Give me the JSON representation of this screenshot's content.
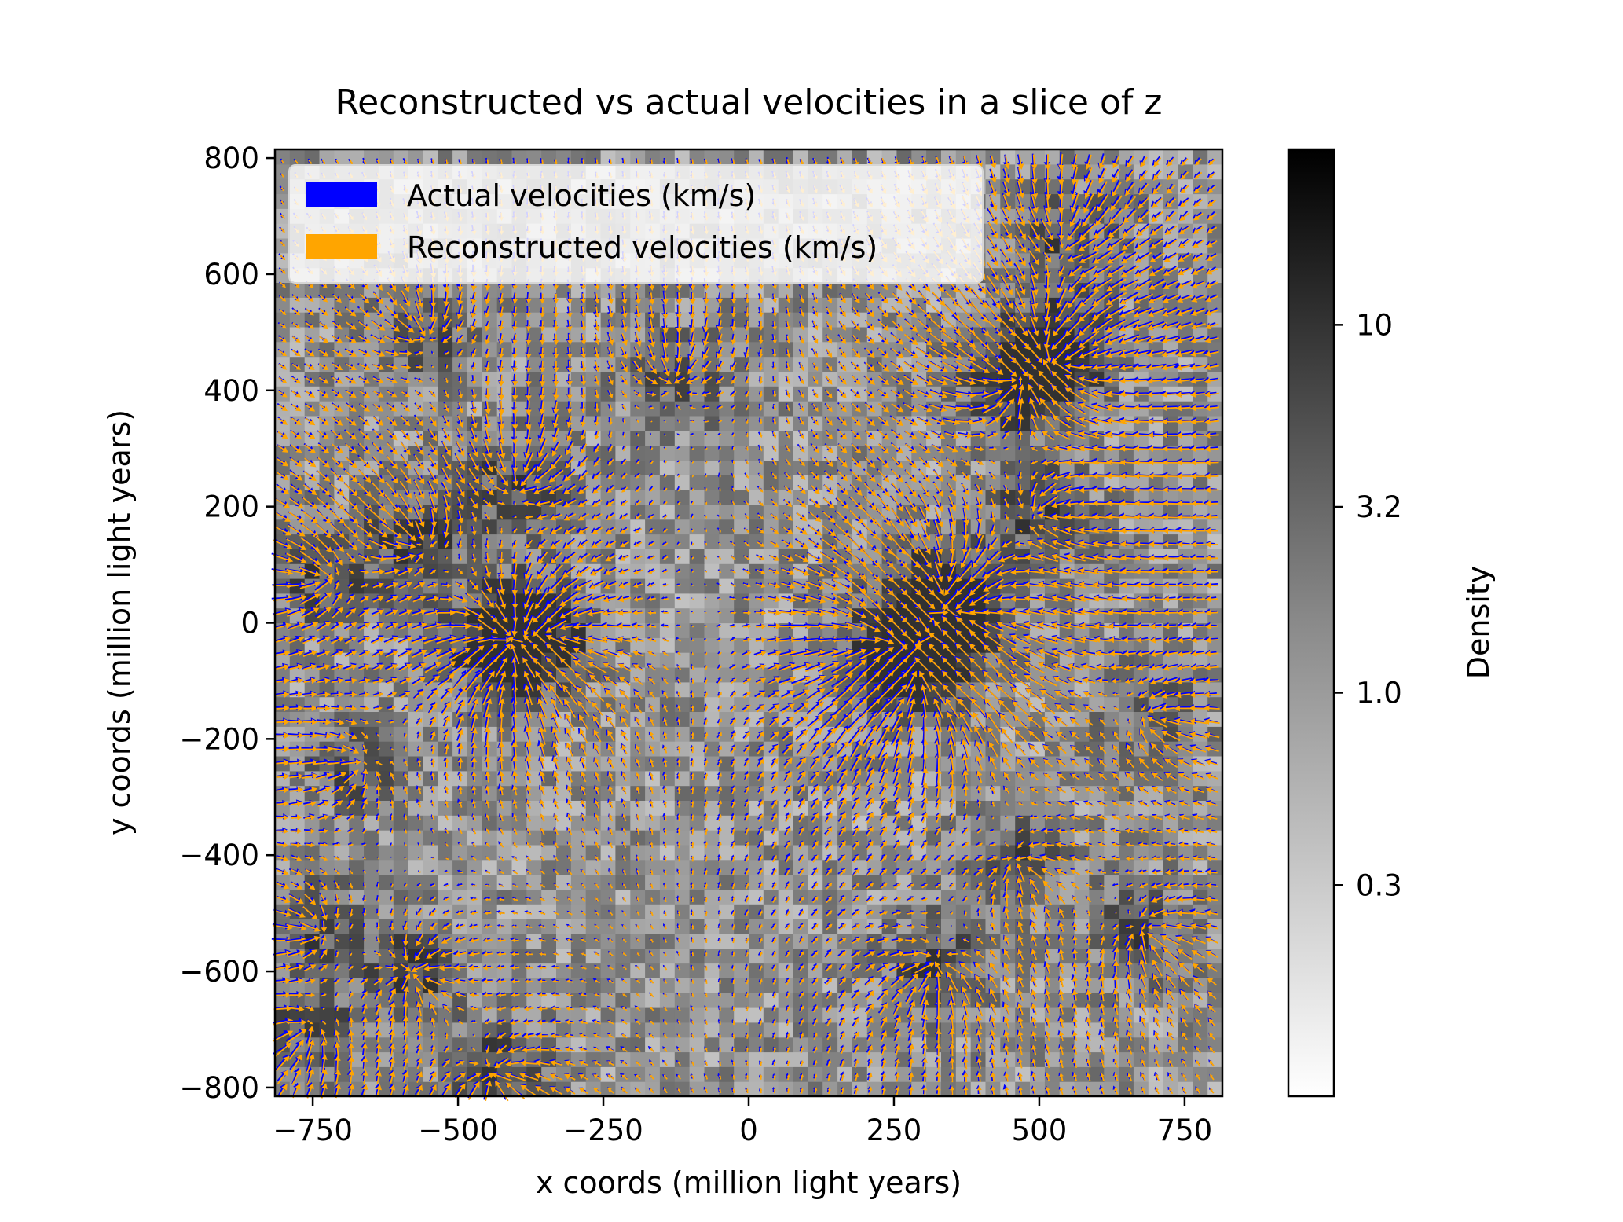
{
  "chart_data": {
    "type": "heatmap",
    "title": "Reconstructed vs actual velocities in a slice of z",
    "xlabel": "x coords (million light years)",
    "ylabel": "y coords (million light years)",
    "xlim": [
      -815,
      815
    ],
    "ylim": [
      -815,
      815
    ],
    "xticks": [
      -750,
      -500,
      -250,
      0,
      250,
      500,
      750
    ],
    "yticks": [
      800,
      600,
      400,
      200,
      0,
      -200,
      -400,
      -600,
      -800
    ],
    "xtick_labels": [
      "−750",
      "−500",
      "−250",
      "0",
      "250",
      "500",
      "750"
    ],
    "ytick_labels": [
      "800",
      "600",
      "400",
      "200",
      "0",
      "−200",
      "−400",
      "−600",
      "−800"
    ],
    "grid": false,
    "legend": {
      "position": "upper-left",
      "entries": [
        {
          "label": "Actual velocities (km/s)",
          "color": "#0000ff"
        },
        {
          "label": "Reconstructed velocities (km/s)",
          "color": "#ffa500"
        }
      ]
    },
    "colorbar": {
      "label": "Density",
      "scale": "log",
      "range": [
        0.08,
        30
      ],
      "ticks": [
        0.3,
        1.0,
        3.2,
        10
      ],
      "tick_labels": [
        "0.3",
        "1.0",
        "3.2",
        "10"
      ],
      "colormap": "greys"
    },
    "density_grid": {
      "nx": 64,
      "ny": 64
    },
    "velocity_field": {
      "series": [
        {
          "name": "Actual velocities (km/s)",
          "color": "#0000ff"
        },
        {
          "name": "Reconstructed velocities (km/s)",
          "color": "#ffa500"
        }
      ],
      "attractors": [
        {
          "x": 280,
          "y": -50,
          "strength": 3.0
        },
        {
          "x": 340,
          "y": 30,
          "strength": 2.4
        },
        {
          "x": 520,
          "y": 460,
          "strength": 1.8
        },
        {
          "x": 460,
          "y": 420,
          "strength": 1.4
        },
        {
          "x": -420,
          "y": -30,
          "strength": 1.8
        },
        {
          "x": -360,
          "y": -20,
          "strength": 1.2
        },
        {
          "x": -400,
          "y": 240,
          "strength": 1.0
        },
        {
          "x": -570,
          "y": 140,
          "strength": 1.0
        },
        {
          "x": -730,
          "y": 80,
          "strength": 0.9
        },
        {
          "x": 500,
          "y": 190,
          "strength": 1.0
        },
        {
          "x": 540,
          "y": 660,
          "strength": 0.9
        },
        {
          "x": -670,
          "y": -240,
          "strength": 0.8
        },
        {
          "x": -580,
          "y": -600,
          "strength": 1.0
        },
        {
          "x": -760,
          "y": -700,
          "strength": 0.8
        },
        {
          "x": -440,
          "y": -780,
          "strength": 1.1
        },
        {
          "x": 320,
          "y": -590,
          "strength": 1.0
        },
        {
          "x": 680,
          "y": -530,
          "strength": 0.9
        },
        {
          "x": 460,
          "y": -410,
          "strength": 0.8
        },
        {
          "x": -560,
          "y": 500,
          "strength": 0.8
        },
        {
          "x": -130,
          "y": 420,
          "strength": 0.8
        },
        {
          "x": 690,
          "y": -160,
          "strength": 0.7
        },
        {
          "x": -740,
          "y": -530,
          "strength": 0.8
        }
      ]
    }
  }
}
